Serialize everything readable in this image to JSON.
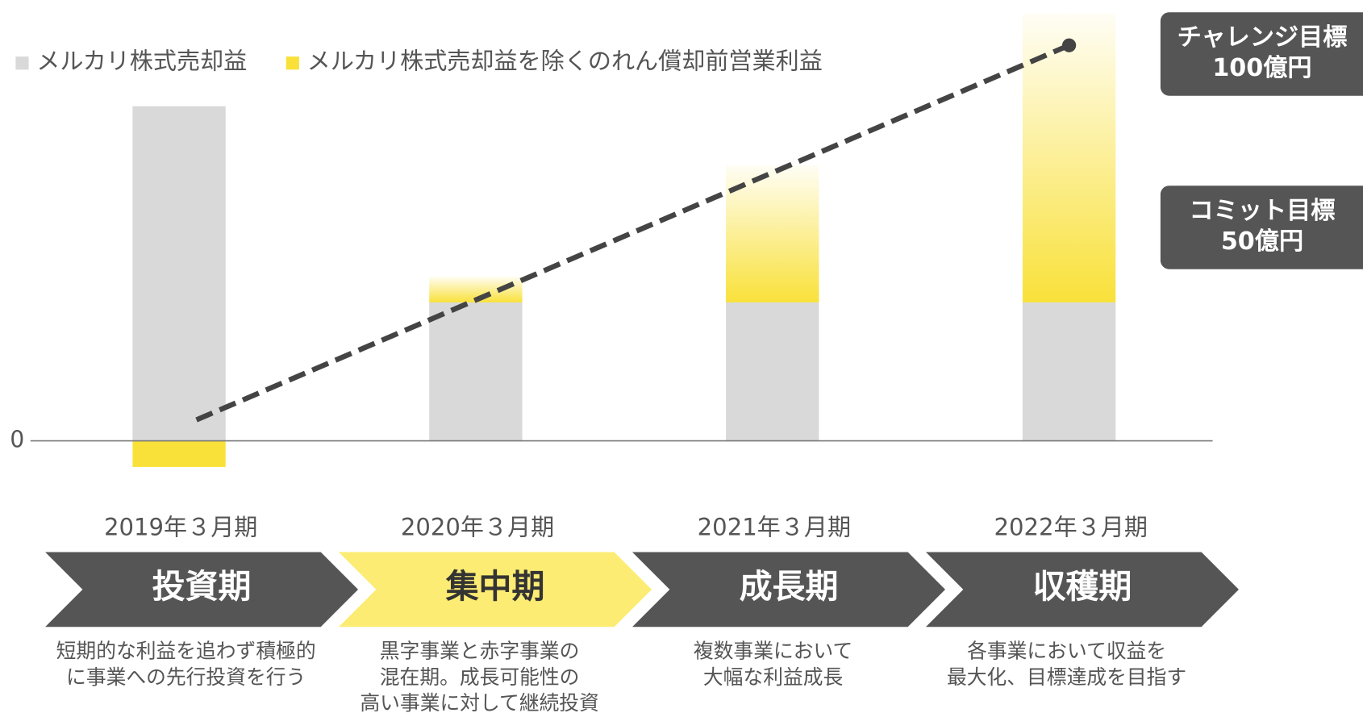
{
  "chart_data": {
    "type": "bar",
    "stacked": true,
    "categories": [
      "2019年３月期",
      "2020年３月期",
      "2021年３月期",
      "2022年３月期"
    ],
    "series": [
      {
        "name": "メルカリ株式売却益",
        "color": "#d9d9d9",
        "values": [
          84.6,
          35,
          35,
          35
        ]
      },
      {
        "name": "メルカリ株式売却益を除くのれん償却前営業利益",
        "color": "#f9e13a",
        "values": [
          -6.6,
          6.6,
          34.7,
          73
        ]
      }
    ],
    "trend_line": {
      "color": "#444444",
      "values": [
        5.3,
        100
      ]
    },
    "ylim": [
      -20,
      111
    ],
    "yticks": [
      0
    ],
    "annotations": [
      {
        "label": "チャレンジ目標",
        "value_label": "100億円",
        "value": 100
      },
      {
        "label": "コミット目標",
        "value_label": "50億円",
        "value": 50
      }
    ],
    "phases": [
      {
        "name": "投資期",
        "highlight": false,
        "description": [
          "短期的な利益を追わず積極的",
          "に事業への先行投資を行う"
        ]
      },
      {
        "name": "集中期",
        "highlight": true,
        "description": [
          "黒字事業と赤字事業の",
          "混在期。成長可能性の",
          "高い事業に対して継続投資"
        ]
      },
      {
        "name": "成長期",
        "highlight": false,
        "description": [
          "複数事業において",
          "大幅な利益成長"
        ]
      },
      {
        "name": "収穫期",
        "highlight": false,
        "description": [
          "各事業において収益を",
          "最大化、目標達成を目指す"
        ]
      }
    ]
  }
}
